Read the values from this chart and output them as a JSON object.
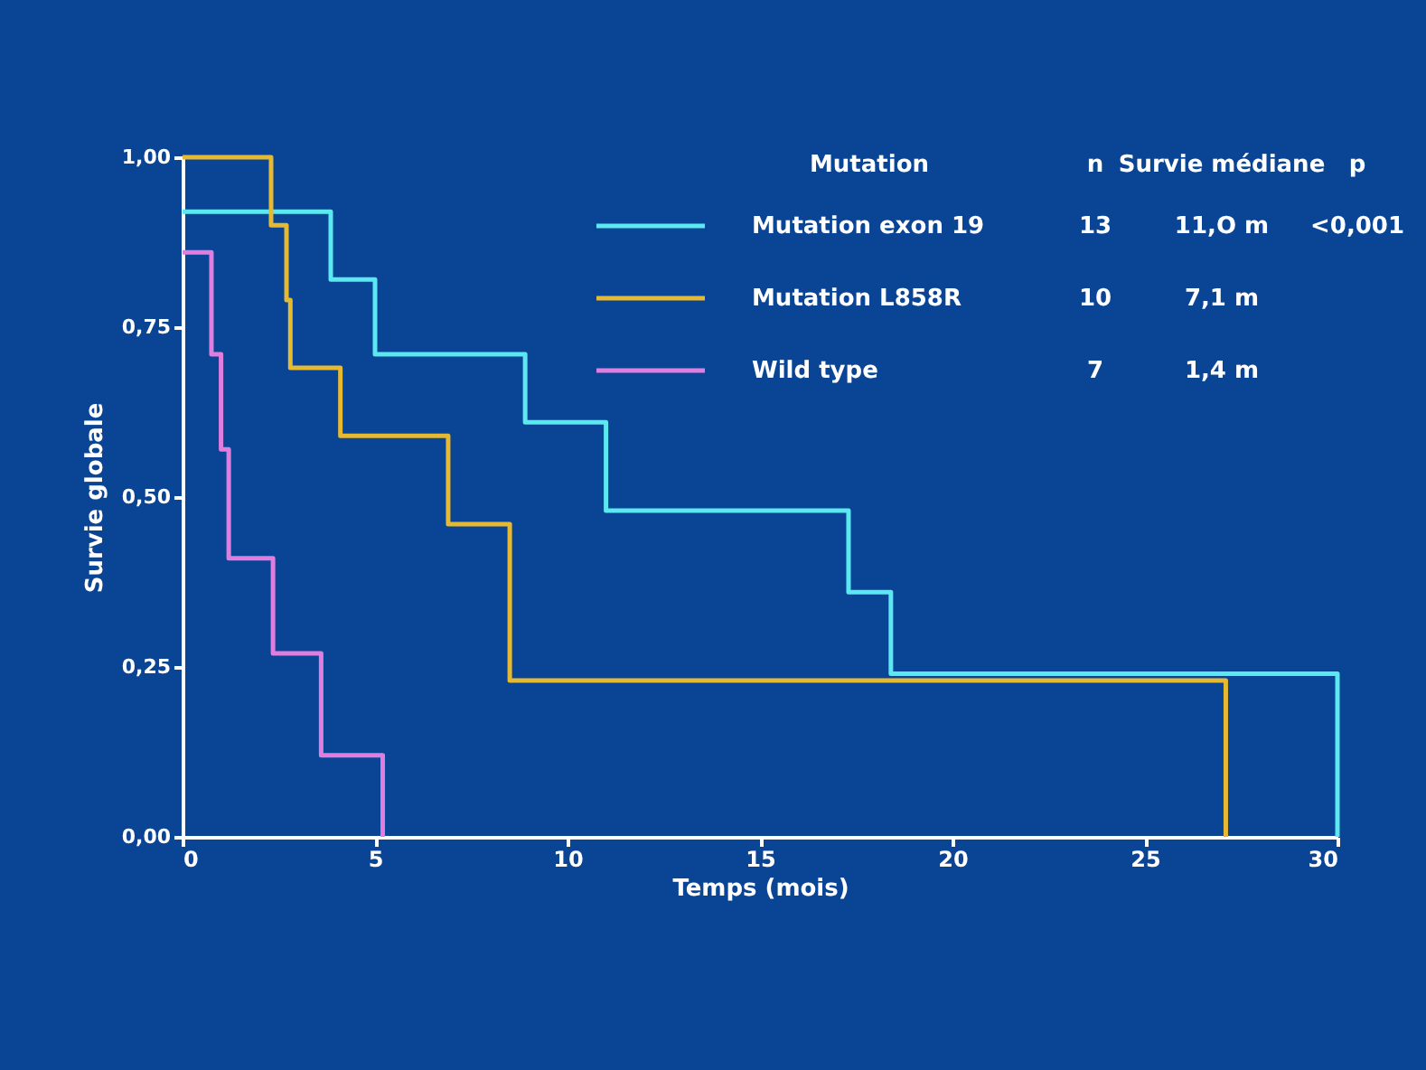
{
  "chart_data": {
    "type": "step",
    "xlabel": "Temps (mois)",
    "ylabel": "Survie globale",
    "legend_title": "Mutation",
    "legend": "top right",
    "grid": false,
    "xlim": [
      0,
      30
    ],
    "xticks": [
      0,
      5,
      10,
      15,
      20,
      25,
      30
    ],
    "ylim": [
      0,
      1
    ],
    "yticks": [
      {
        "value": 0,
        "label": "0,00"
      },
      {
        "value": 0.25,
        "label": "0,25"
      },
      {
        "value": 0.5,
        "label": "0,50"
      },
      {
        "value": 0.75,
        "label": "0,75"
      },
      {
        "value": 1,
        "label": "1,00"
      }
    ],
    "series": [
      {
        "name": "Mutation exon 19",
        "color": "#5ce8f0",
        "x": [
          0,
          3.85,
          5.0,
          8.9,
          11.0,
          17.3,
          18.4,
          30.0
        ],
        "values": [
          0.92,
          0.82,
          0.71,
          0.61,
          0.48,
          0.36,
          0.24,
          0
        ]
      },
      {
        "name": "Mutation L858R",
        "color": "#e6b933",
        "x": [
          0,
          2.3,
          2.7,
          2.8,
          4.1,
          6.9,
          8.5,
          27.1
        ],
        "values": [
          1.0,
          0.9,
          0.79,
          0.69,
          0.59,
          0.46,
          0.23,
          0
        ]
      },
      {
        "name": "Wild type",
        "color": "#e07ee0",
        "x": [
          0,
          0.75,
          1.0,
          1.2,
          2.35,
          3.6,
          5.2
        ],
        "values": [
          0.86,
          0.71,
          0.57,
          0.41,
          0.27,
          0.12,
          0
        ]
      }
    ],
    "annotations": [
      "n",
      "Survie médiane",
      "p",
      "13",
      "11,O m",
      "<0,001",
      "10",
      "7,1 m",
      "7",
      "1,4 m"
    ]
  }
}
